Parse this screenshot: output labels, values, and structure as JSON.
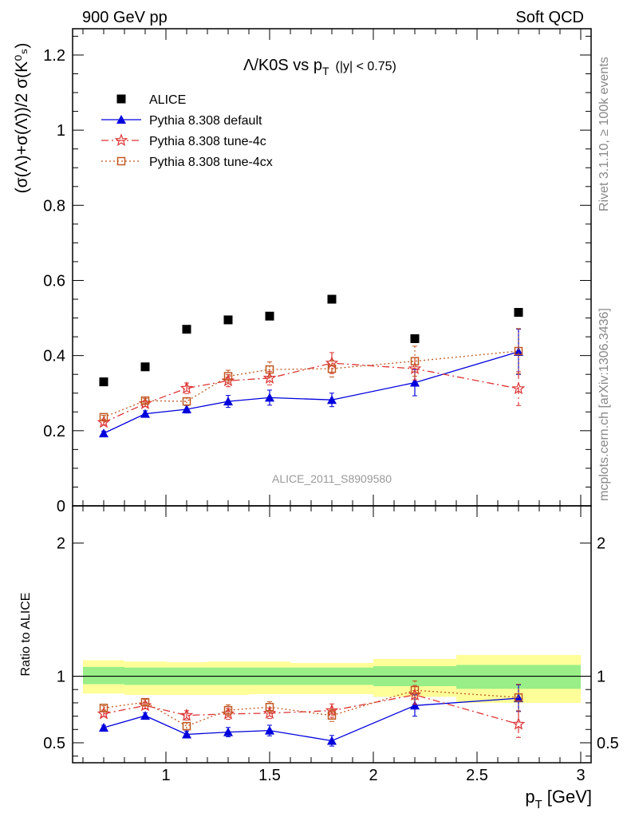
{
  "header": {
    "left": "900 GeV pp",
    "right": "Soft QCD"
  },
  "side_labels": {
    "rivet": "Rivet 3.1.10, ≥ 100k events",
    "mcplots": "mcplots.cern.ch [arXiv:1306.3436]"
  },
  "chart_data": [
    {
      "type": "scatter",
      "panel": "main",
      "title_main": "Λ/K0S vs p",
      "title_sub": "T",
      "title_cut": "(|y| < 0.75)",
      "ylabel": "(σ(Λ)+σ(Λ̄))/2 σ(K⁰ₛ)",
      "watermark": "ALICE_2011_S8909580",
      "xlim": [
        0.55,
        3.05
      ],
      "ylim": [
        0,
        1.27
      ],
      "yticks": [
        0,
        0.2,
        0.4,
        0.6,
        0.8,
        1,
        1.2
      ],
      "ytick_labels": [
        "0",
        "0.2",
        "0.4",
        "0.6",
        "0.8",
        "1",
        "1.2"
      ],
      "legend_position": "top-left",
      "series": [
        {
          "name": "ALICE",
          "color": "#000000",
          "marker": "square",
          "line": "none",
          "x": [
            0.7,
            0.9,
            1.1,
            1.3,
            1.5,
            1.8,
            2.2,
            2.7
          ],
          "y": [
            0.33,
            0.37,
            0.47,
            0.495,
            0.505,
            0.55,
            0.445,
            0.515
          ],
          "err": [
            0.01,
            0.01,
            0.01,
            0.01,
            0.01,
            0.01,
            0.01,
            0.01
          ]
        },
        {
          "name": "Pythia 8.308 default",
          "color": "#0000dd",
          "marker": "triangle",
          "line": "solid",
          "x": [
            0.7,
            0.9,
            1.1,
            1.3,
            1.5,
            1.8,
            2.2,
            2.7
          ],
          "y": [
            0.193,
            0.245,
            0.257,
            0.278,
            0.288,
            0.282,
            0.328,
            0.41
          ],
          "err": [
            0.006,
            0.008,
            0.01,
            0.016,
            0.02,
            0.018,
            0.035,
            0.06
          ]
        },
        {
          "name": "Pythia 8.308 tune-4c",
          "color": "#dd3333",
          "marker": "star",
          "line": "dashdot",
          "x": [
            0.7,
            0.9,
            1.1,
            1.3,
            1.5,
            1.8,
            2.2,
            2.7
          ],
          "y": [
            0.222,
            0.272,
            0.313,
            0.333,
            0.34,
            0.38,
            0.365,
            0.312
          ],
          "err": [
            0.006,
            0.008,
            0.014,
            0.016,
            0.018,
            0.028,
            0.03,
            0.045
          ]
        },
        {
          "name": "Pythia 8.308 tune-4cx",
          "color": "#c05820",
          "marker": "open-square",
          "line": "dotted",
          "x": [
            0.7,
            0.9,
            1.1,
            1.3,
            1.5,
            1.8,
            2.2,
            2.7
          ],
          "y": [
            0.236,
            0.28,
            0.278,
            0.345,
            0.363,
            0.365,
            0.385,
            0.412
          ],
          "err": [
            0.005,
            0.006,
            0.01,
            0.016,
            0.02,
            0.022,
            0.04,
            0.06
          ]
        }
      ]
    },
    {
      "type": "scatter",
      "panel": "ratio",
      "ylabel": "Ratio to ALICE",
      "xlabel_main": "p",
      "xlabel_sub": "T",
      "xlabel_unit": "[GeV]",
      "xlim": [
        0.55,
        3.05
      ],
      "ylim": [
        0.35,
        2.28
      ],
      "xticks": [
        1,
        1.5,
        2,
        2.5,
        3
      ],
      "xtick_labels": [
        "1",
        "1.5",
        "2",
        "2.5",
        "3"
      ],
      "yticks": [
        0.5,
        1,
        2
      ],
      "ytick_labels": [
        "0.5",
        "1",
        "2"
      ],
      "reference_line": 1,
      "bands": {
        "edges": [
          0.6,
          0.8,
          1.0,
          1.2,
          1.4,
          1.6,
          2.0,
          2.4,
          3.0
        ],
        "inner": [
          [
            0.94,
            1.07
          ],
          [
            0.935,
            1.065
          ],
          [
            0.935,
            1.065
          ],
          [
            0.935,
            1.065
          ],
          [
            0.935,
            1.065
          ],
          [
            0.935,
            1.065
          ],
          [
            0.925,
            1.075
          ],
          [
            0.905,
            1.085
          ]
        ],
        "outer": [
          [
            0.87,
            1.12
          ],
          [
            0.86,
            1.11
          ],
          [
            0.86,
            1.105
          ],
          [
            0.86,
            1.11
          ],
          [
            0.865,
            1.11
          ],
          [
            0.865,
            1.1
          ],
          [
            0.845,
            1.13
          ],
          [
            0.8,
            1.16
          ]
        ],
        "inner_color": "#99ee88",
        "outer_color": "#ffff99"
      },
      "series": [
        {
          "name": "Pythia 8.308 default",
          "color": "#0000dd",
          "marker": "triangle",
          "line": "solid",
          "x": [
            0.7,
            0.9,
            1.1,
            1.3,
            1.5,
            1.8,
            2.2,
            2.7
          ],
          "y": [
            0.614,
            0.703,
            0.563,
            0.58,
            0.592,
            0.515,
            0.78,
            0.835
          ],
          "err": [
            0.018,
            0.022,
            0.025,
            0.035,
            0.04,
            0.04,
            0.08,
            0.1
          ]
        },
        {
          "name": "Pythia 8.308 tune-4c",
          "color": "#dd3333",
          "marker": "star",
          "line": "dashdot",
          "x": [
            0.7,
            0.9,
            1.1,
            1.3,
            1.5,
            1.8,
            2.2,
            2.7
          ],
          "y": [
            0.718,
            0.78,
            0.706,
            0.717,
            0.722,
            0.742,
            0.86,
            0.64
          ],
          "err": [
            0.02,
            0.025,
            0.035,
            0.04,
            0.04,
            0.05,
            0.07,
            0.1
          ]
        },
        {
          "name": "Pythia 8.308 tune-4cx",
          "color": "#c05820",
          "marker": "open-square",
          "line": "dotted",
          "x": [
            0.7,
            0.9,
            1.1,
            1.3,
            1.5,
            1.8,
            2.2,
            2.7
          ],
          "y": [
            0.762,
            0.805,
            0.625,
            0.745,
            0.768,
            0.705,
            0.895,
            0.84
          ],
          "err": [
            0.016,
            0.02,
            0.025,
            0.04,
            0.04,
            0.045,
            0.07,
            0.1
          ]
        }
      ]
    }
  ]
}
